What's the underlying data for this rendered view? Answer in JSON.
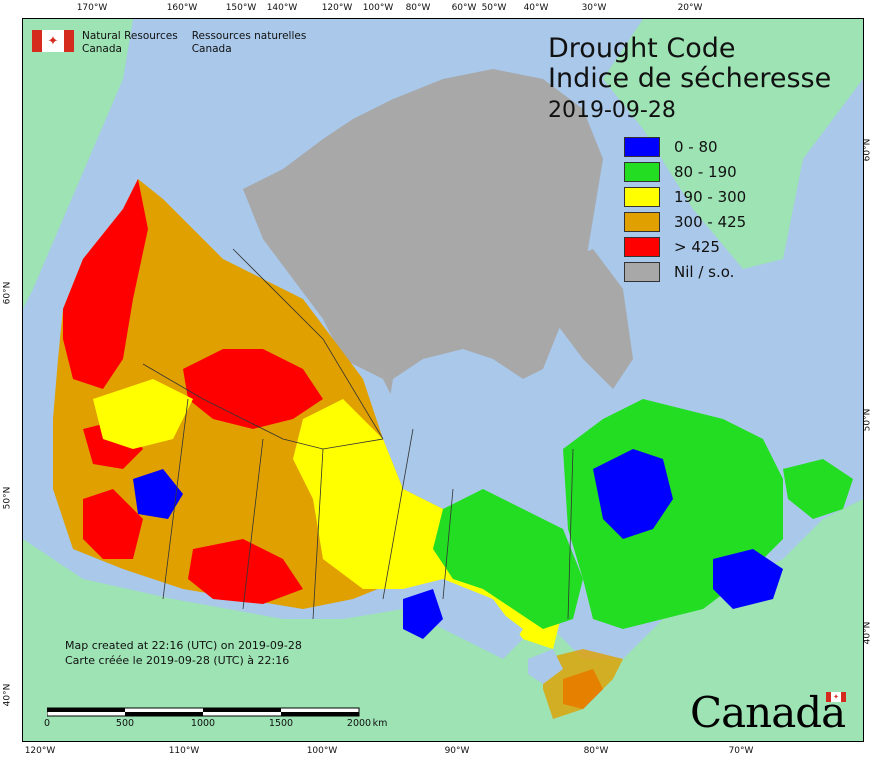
{
  "title": {
    "line1": "Drought Code",
    "line2": "Indice de sécheresse",
    "date": "2019-09-28"
  },
  "agency": {
    "en_line1": "Natural Resources",
    "en_line2": "Canada",
    "fr_line1": "Ressources naturelles",
    "fr_line2": "Canada",
    "flag_icon": "canada-flag-icon"
  },
  "legend": [
    {
      "label": "0 - 80",
      "color": "#0000ff"
    },
    {
      "label": "80 - 190",
      "color": "#22dd22"
    },
    {
      "label": "190 - 300",
      "color": "#ffff00"
    },
    {
      "label": "300 - 425",
      "color": "#e0a000"
    },
    {
      "label": "> 425",
      "color": "#ff0000"
    },
    {
      "label": "Nil / s.o.",
      "color": "#a8a8a8"
    }
  ],
  "note": {
    "en": "Map created at 22:16 (UTC) on 2019-09-28",
    "fr": "Carte créée le 2019-09-28 (UTC) à 22:16"
  },
  "scale": {
    "labels": [
      "0",
      "500",
      "1000",
      "1500",
      "2000"
    ],
    "unit": "km"
  },
  "ticks": {
    "top": [
      "170°W",
      "160°W",
      "150°W",
      "140°W",
      "120°W",
      "100°W",
      "80°W",
      "60°W",
      "50°W",
      "40°W",
      "30°W",
      "20°W"
    ],
    "bottom": [
      "120°W",
      "110°W",
      "100°W",
      "90°W",
      "80°W",
      "70°W"
    ],
    "left": [
      "60°N",
      "50°N",
      "40°N"
    ],
    "right": [
      "60°N",
      "50°N",
      "40°N"
    ]
  },
  "wordmark": "Canada",
  "colors": {
    "ocean": "#a9c8ea",
    "land_outside": "#9de3b4",
    "nodata": "#a8a8a8"
  }
}
